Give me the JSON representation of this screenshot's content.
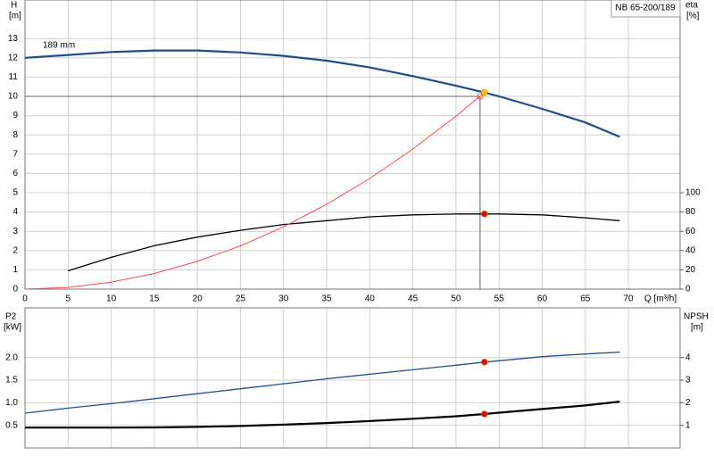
{
  "chart_data": [
    {
      "type": "line",
      "title": "NB 65-200/189",
      "annotation": "189 mm",
      "ylabel": "H",
      "yunit": "[m]",
      "y2label": "eta",
      "y2unit": "[%]",
      "xlabel": "Q [m³/h]",
      "x": [
        0,
        5,
        10,
        15,
        20,
        25,
        30,
        35,
        40,
        45,
        50,
        53.3,
        55,
        60,
        65,
        69
      ],
      "xlim": [
        0,
        76
      ],
      "xticks": [
        0,
        5,
        10,
        15,
        20,
        25,
        30,
        35,
        40,
        45,
        50,
        55,
        60,
        65,
        70
      ],
      "ylim": [
        0,
        15
      ],
      "yticks": [
        0,
        1,
        2,
        3,
        4,
        5,
        6,
        7,
        8,
        9,
        10,
        11,
        12,
        13
      ],
      "y2lim": [
        0,
        300
      ],
      "y2ticks": [
        0,
        20,
        40,
        60,
        80,
        100
      ],
      "grid": true,
      "series": [
        {
          "color": "#1f4e8c",
          "width": 2.2,
          "values": [
            12.0,
            12.15,
            12.3,
            12.38,
            12.38,
            12.28,
            12.1,
            11.85,
            11.5,
            11.05,
            10.55,
            10.2,
            10.0,
            9.35,
            8.65,
            7.9
          ]
        },
        {
          "color": "#000000",
          "width": 1.3,
          "axis": "y2",
          "values": [
            null,
            19,
            33,
            45,
            54,
            61,
            67,
            71,
            75,
            77,
            78,
            78,
            78,
            77,
            74,
            71
          ]
        },
        {
          "color": "#ff4a4a",
          "width": 1,
          "values": [
            0,
            0.09,
            0.36,
            0.81,
            1.44,
            2.24,
            3.23,
            4.4,
            5.74,
            7.27,
            8.97,
            10.2,
            null,
            null,
            null,
            null
          ]
        }
      ],
      "guide": {
        "x": 52.8,
        "y": 10
      },
      "points": [
        {
          "x": 53.3,
          "y": 10.2,
          "color": "#f5c400"
        },
        {
          "x": 53.3,
          "y": 78,
          "axis": "y2",
          "color": "#e01010"
        }
      ]
    },
    {
      "type": "line",
      "ylabel": "P2",
      "yunit": "[kW]",
      "y2label": "NPSH",
      "y2unit": "[m]",
      "x": [
        0,
        5,
        10,
        15,
        20,
        25,
        30,
        35,
        40,
        45,
        50,
        53.3,
        55,
        60,
        65,
        69
      ],
      "xlim": [
        0,
        76
      ],
      "xticks": [
        0,
        5,
        10,
        15,
        20,
        25,
        30,
        35,
        40,
        45,
        50,
        55,
        60,
        65,
        70
      ],
      "ylim": [
        0,
        3.1
      ],
      "yticks": [
        0.5,
        {
          "value": 1.0,
          "label": "1.0"
        },
        1.5,
        {
          "value": 2.0,
          "label": "2.0"
        }
      ],
      "y2lim": [
        0,
        6.2
      ],
      "y2ticks": [
        1,
        2,
        3,
        4
      ],
      "grid": true,
      "series": [
        {
          "color": "#1f4e8c",
          "width": 1.3,
          "values": [
            0.77,
            0.88,
            0.98,
            1.09,
            1.2,
            1.31,
            1.42,
            1.53,
            1.63,
            1.73,
            1.83,
            1.9,
            1.93,
            2.02,
            2.08,
            2.12
          ]
        },
        {
          "color": "#000000",
          "width": 2.2,
          "axis": "y2",
          "values": [
            0.9,
            0.9,
            0.9,
            0.91,
            0.93,
            0.97,
            1.03,
            1.1,
            1.19,
            1.29,
            1.4,
            1.5,
            1.56,
            1.72,
            1.88,
            2.05
          ]
        }
      ],
      "points": [
        {
          "x": 53.3,
          "y": 1.9,
          "color": "#e01010"
        },
        {
          "x": 53.3,
          "y": 1.5,
          "axis": "y2",
          "color": "#e01010"
        }
      ]
    }
  ]
}
